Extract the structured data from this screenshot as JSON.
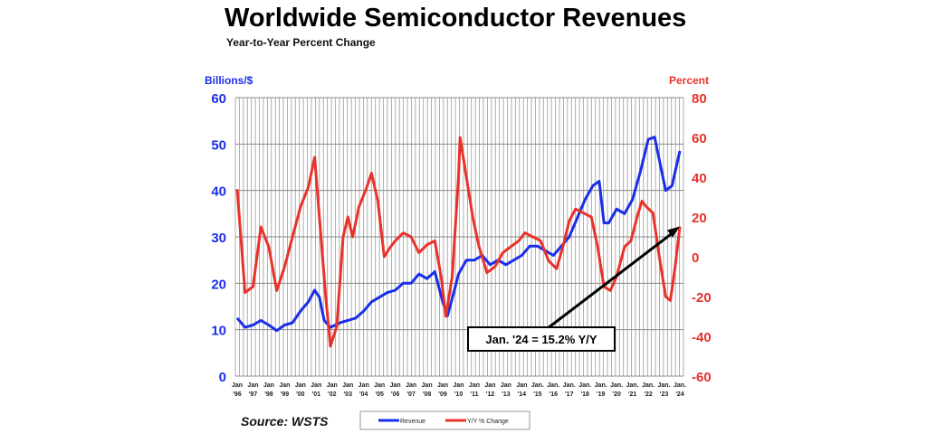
{
  "chart_data": {
    "type": "line",
    "title": "Worldwide Semiconductor Revenues",
    "subtitle": "Year-to-Year Percent Change",
    "ylabel_left": "Billions/$",
    "ylabel_right": "Percent",
    "ylim_left": [
      0,
      60
    ],
    "ylim_right": [
      -60,
      80
    ],
    "yticks_left": [
      "0",
      "10",
      "20",
      "30",
      "40",
      "50",
      "60"
    ],
    "yticks_right": [
      "-60",
      "-40",
      "-20",
      "0",
      "20",
      "40",
      "60",
      "80"
    ],
    "xlim": [
      1996,
      2024
    ],
    "xtick_top": [
      "Jan",
      "Jan",
      "Jan",
      "Jan",
      "Jan",
      "Jan",
      "Jan",
      "Jan",
      "Jan",
      "Jan",
      "Jan",
      "Jan",
      "Jan",
      "Jan",
      "Jan",
      "Jan",
      "Jan",
      "Jan",
      "Jan",
      "Jan.",
      "Jan.",
      "Jan.",
      "Jan.",
      "Jan.",
      "Jan.",
      "Jan.",
      "Jan.",
      "Jan.",
      "Jan."
    ],
    "xtick_bottom": [
      "'96",
      "'97",
      "'98",
      "'99",
      "'00",
      "'01",
      "'02",
      "'03",
      "'04",
      "'05",
      "'06",
      "'07",
      "'08",
      "'09",
      "'10",
      "'11",
      "'12",
      "'13",
      "'14",
      "'15",
      "'16",
      "'17",
      "'18",
      "'19",
      "'20",
      "'21",
      "'22",
      "'23",
      "'24"
    ],
    "grid": true,
    "legend_position": "bottom",
    "source": "Source: WSTS",
    "annotation": "Jan. '24 = 15.2% Y/Y",
    "series": [
      {
        "name": "Revenue",
        "axis": "left",
        "color": "#1a2ee8",
        "x": [
          1996,
          1996.5,
          1997,
          1997.5,
          1998,
          1998.5,
          1999,
          1999.5,
          2000,
          2000.5,
          2000.9,
          2001.2,
          2001.5,
          2001.9,
          2002.5,
          2003,
          2003.5,
          2004,
          2004.5,
          2005,
          2005.5,
          2006,
          2006.5,
          2007,
          2007.5,
          2008,
          2008.5,
          2009,
          2009.3,
          2009.7,
          2010,
          2010.5,
          2011,
          2011.5,
          2012,
          2012.5,
          2013,
          2013.5,
          2014,
          2014.5,
          2015,
          2015.5,
          2016,
          2016.5,
          2017,
          2017.5,
          2018,
          2018.5,
          2018.9,
          2019.2,
          2019.5,
          2020,
          2020.5,
          2021,
          2021.5,
          2022,
          2022.4,
          2022.8,
          2023.1,
          2023.5,
          2024
        ],
        "values": [
          12.5,
          10.5,
          11,
          12,
          11,
          9.8,
          11,
          11.5,
          14,
          16,
          18.5,
          17,
          12,
          10.5,
          11.5,
          12,
          12.5,
          14,
          16,
          17,
          18,
          18.5,
          20,
          20,
          22,
          21,
          22.5,
          16,
          13,
          18,
          22,
          25,
          25,
          26,
          24,
          25,
          24,
          25,
          26,
          28,
          28,
          27,
          26,
          28,
          30,
          34,
          38,
          41,
          42,
          33,
          33,
          36,
          35,
          38,
          44,
          51,
          51.5,
          45,
          40,
          41,
          48.5
        ]
      },
      {
        "name": "Y/Y % Change",
        "axis": "right",
        "color": "#e8322a",
        "x": [
          1996,
          1996.5,
          1997,
          1997.5,
          1998,
          1998.5,
          1999,
          1999.5,
          2000,
          2000.5,
          2000.9,
          2001.2,
          2001.6,
          2001.9,
          2002.3,
          2002.7,
          2003,
          2003.3,
          2003.7,
          2004.2,
          2004.5,
          2004.9,
          2005.3,
          2005.7,
          2006,
          2006.5,
          2007,
          2007.5,
          2008,
          2008.5,
          2008.9,
          2009.2,
          2009.6,
          2010,
          2010.1,
          2010.5,
          2010.9,
          2011.3,
          2011.8,
          2012.3,
          2012.8,
          2013.3,
          2013.8,
          2014.2,
          2014.7,
          2015.2,
          2015.7,
          2016.2,
          2016.6,
          2017,
          2017.4,
          2017.9,
          2018.4,
          2018.8,
          2019.2,
          2019.6,
          2020,
          2020.5,
          2020.9,
          2021.3,
          2021.6,
          2021.9,
          2022.3,
          2022.7,
          2023.1,
          2023.4,
          2023.7,
          2024
        ],
        "values": [
          34,
          -18,
          -15,
          15,
          5,
          -17,
          -5,
          10,
          25,
          35,
          50,
          20,
          -20,
          -45,
          -35,
          10,
          20,
          10,
          25,
          35,
          42,
          28,
          0,
          5,
          8,
          12,
          10,
          2,
          6,
          8,
          -10,
          -30,
          -10,
          40,
          60,
          40,
          20,
          5,
          -8,
          -5,
          2,
          5,
          8,
          12,
          10,
          8,
          -2,
          -6,
          5,
          18,
          24,
          22,
          20,
          5,
          -15,
          -17,
          -10,
          5,
          8,
          20,
          28,
          25,
          22,
          0,
          -20,
          -22,
          -5,
          15.2
        ]
      }
    ]
  }
}
